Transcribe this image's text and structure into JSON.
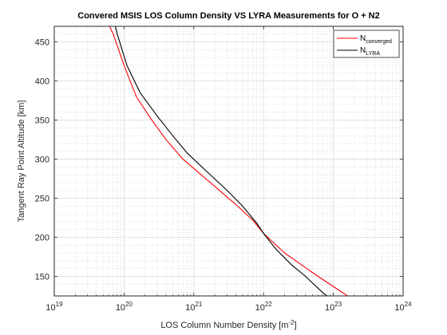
{
  "chart_data": {
    "type": "line",
    "title": "Convered MSIS LOS Column Density VS LYRA Measurements for O + N2",
    "xlabel": "LOS Column Number Density [m",
    "xlabel_sup": "-2",
    "xlabel_end": "]",
    "ylabel": "Tangent Ray Point Altitude [km]",
    "x_scale": "log",
    "xlim": [
      1e+19,
      1e+24
    ],
    "ylim": [
      125,
      470
    ],
    "x_ticks": [
      {
        "base": "10",
        "exp": "19"
      },
      {
        "base": "10",
        "exp": "20"
      },
      {
        "base": "10",
        "exp": "21"
      },
      {
        "base": "10",
        "exp": "22"
      },
      {
        "base": "10",
        "exp": "23"
      },
      {
        "base": "10",
        "exp": "24"
      }
    ],
    "y_ticks": [
      "150",
      "200",
      "250",
      "300",
      "350",
      "400",
      "450"
    ],
    "grid": true,
    "minor_grid": true,
    "legend_position": "top-right",
    "series": [
      {
        "name": "N",
        "name_sub": "converged",
        "color": "#ff0000",
        "x": [
          6.2e+19,
          7e+19,
          1e+20,
          1.5e+20,
          2.5e+20,
          4e+20,
          7e+20,
          1.2e+21,
          2.2e+21,
          4e+21,
          7e+21,
          1e+22,
          2e+22,
          5e+22,
          1e+23,
          1.6e+23
        ],
        "y": [
          470,
          460,
          420,
          380,
          350,
          325,
          300,
          282,
          262,
          242,
          222,
          205,
          180,
          155,
          137,
          125
        ]
      },
      {
        "name": "N",
        "name_sub": "LYRA",
        "color": "#000000",
        "x": [
          7.5e+19,
          8e+19,
          1.1e+20,
          1.7e+20,
          3e+20,
          5e+20,
          8e+20,
          1.5e+21,
          3e+21,
          5e+21,
          8e+21,
          1e+22,
          1.5e+22,
          2.5e+22,
          4e+22,
          6e+22,
          8e+22
        ],
        "y": [
          470,
          460,
          420,
          385,
          355,
          330,
          308,
          285,
          260,
          240,
          218,
          205,
          185,
          165,
          150,
          135,
          125
        ]
      }
    ]
  }
}
